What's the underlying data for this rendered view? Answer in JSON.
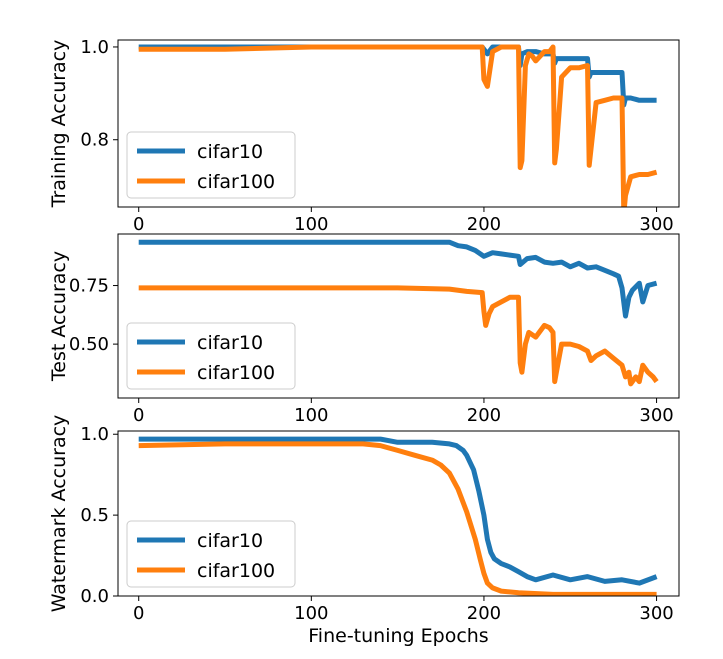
{
  "chart_data": [
    {
      "type": "line",
      "ylabel": "Training Accuracy",
      "xlabel": "",
      "xlim": [
        -12,
        313
      ],
      "ylim": [
        0.655,
        1.015
      ],
      "xticks": [
        0,
        100,
        200,
        300
      ],
      "xtick_labels": [
        "0",
        "100",
        "200",
        "300"
      ],
      "yticks": [
        0.8,
        1.0
      ],
      "ytick_labels": [
        "0.8",
        "1.0"
      ],
      "legend_position": "lower-left",
      "series": [
        {
          "name": "cifar10",
          "color": "#1f77b4",
          "x": [
            0,
            20,
            50,
            100,
            150,
            180,
            199,
            202,
            205,
            210,
            220,
            221,
            222,
            225,
            230,
            235,
            240,
            241,
            242,
            245,
            250,
            255,
            260,
            261,
            262,
            265,
            270,
            275,
            280,
            281,
            282,
            285,
            290,
            295,
            300
          ],
          "y": [
            1.0,
            1.0,
            1.0,
            1.0,
            1.0,
            1.0,
            1.0,
            0.985,
            1.0,
            1.0,
            1.0,
            0.96,
            0.985,
            0.99,
            0.99,
            0.985,
            0.985,
            0.965,
            0.975,
            0.975,
            0.975,
            0.975,
            0.975,
            0.935,
            0.945,
            0.945,
            0.945,
            0.945,
            0.945,
            0.875,
            0.89,
            0.89,
            0.885,
            0.885,
            0.885
          ]
        },
        {
          "name": "cifar100",
          "color": "#ff7f0e",
          "x": [
            0,
            20,
            50,
            100,
            150,
            180,
            199,
            200,
            202,
            205,
            210,
            220,
            221,
            222,
            224,
            226,
            228,
            230,
            235,
            238,
            240,
            241,
            242,
            245,
            250,
            255,
            260,
            261,
            262,
            265,
            270,
            275,
            280,
            281,
            282,
            285,
            290,
            295,
            300
          ],
          "y": [
            0.995,
            0.995,
            0.995,
            1.0,
            1.0,
            1.0,
            1.0,
            0.93,
            0.915,
            0.99,
            1.0,
            1.0,
            0.74,
            0.755,
            0.96,
            0.985,
            0.98,
            0.97,
            0.99,
            0.99,
            1.0,
            0.75,
            0.78,
            0.935,
            0.955,
            0.955,
            0.96,
            0.745,
            0.78,
            0.88,
            0.885,
            0.89,
            0.89,
            0.64,
            0.68,
            0.72,
            0.725,
            0.725,
            0.73
          ]
        }
      ]
    },
    {
      "type": "line",
      "ylabel": "Test Accuracy",
      "xlabel": "",
      "xlim": [
        -12,
        313
      ],
      "ylim": [
        0.27,
        0.97
      ],
      "xticks": [
        0,
        100,
        200,
        300
      ],
      "xtick_labels": [
        "0",
        "100",
        "200",
        "300"
      ],
      "yticks": [
        0.5,
        0.75
      ],
      "ytick_labels": [
        "0.50",
        "0.75"
      ],
      "legend_position": "lower-left",
      "series": [
        {
          "name": "cifar10",
          "color": "#1f77b4",
          "x": [
            0,
            50,
            100,
            150,
            180,
            185,
            190,
            195,
            200,
            205,
            210,
            215,
            220,
            221,
            225,
            230,
            235,
            240,
            245,
            250,
            255,
            260,
            265,
            270,
            275,
            278,
            280,
            282,
            284,
            286,
            290,
            292,
            295,
            300
          ],
          "y": [
            0.935,
            0.935,
            0.935,
            0.935,
            0.935,
            0.92,
            0.915,
            0.9,
            0.875,
            0.89,
            0.885,
            0.88,
            0.875,
            0.84,
            0.865,
            0.87,
            0.85,
            0.845,
            0.85,
            0.83,
            0.845,
            0.825,
            0.83,
            0.815,
            0.8,
            0.79,
            0.74,
            0.62,
            0.7,
            0.73,
            0.76,
            0.68,
            0.75,
            0.76
          ]
        },
        {
          "name": "cifar100",
          "color": "#ff7f0e",
          "x": [
            0,
            50,
            100,
            150,
            180,
            190,
            199,
            200,
            201,
            203,
            205,
            210,
            215,
            220,
            221,
            222,
            224,
            226,
            230,
            235,
            238,
            240,
            241,
            242,
            245,
            250,
            255,
            260,
            262,
            265,
            270,
            275,
            280,
            282,
            284,
            285,
            288,
            290,
            292,
            295,
            298,
            300
          ],
          "y": [
            0.74,
            0.74,
            0.74,
            0.74,
            0.735,
            0.725,
            0.72,
            0.64,
            0.58,
            0.63,
            0.66,
            0.68,
            0.7,
            0.7,
            0.42,
            0.38,
            0.5,
            0.55,
            0.53,
            0.58,
            0.57,
            0.55,
            0.34,
            0.38,
            0.5,
            0.5,
            0.49,
            0.47,
            0.43,
            0.45,
            0.47,
            0.44,
            0.41,
            0.36,
            0.38,
            0.33,
            0.36,
            0.34,
            0.41,
            0.38,
            0.36,
            0.34
          ]
        }
      ]
    },
    {
      "type": "line",
      "ylabel": "Watermark Accuracy",
      "xlabel": "Fine-tuning Epochs",
      "xlim": [
        -12,
        313
      ],
      "ylim": [
        0.0,
        1.02
      ],
      "xticks": [
        0,
        100,
        200,
        300
      ],
      "xtick_labels": [
        "0",
        "100",
        "200",
        "300"
      ],
      "yticks": [
        0.0,
        0.5,
        1.0
      ],
      "ytick_labels": [
        "0.0",
        "0.5",
        "1.0"
      ],
      "legend_position": "lower-left",
      "series": [
        {
          "name": "cifar10",
          "color": "#1f77b4",
          "x": [
            0,
            50,
            100,
            140,
            150,
            160,
            170,
            180,
            184,
            188,
            190,
            194,
            197,
            200,
            202,
            204,
            206,
            210,
            215,
            220,
            225,
            230,
            240,
            250,
            260,
            270,
            280,
            290,
            300
          ],
          "y": [
            0.97,
            0.97,
            0.97,
            0.97,
            0.95,
            0.95,
            0.95,
            0.94,
            0.93,
            0.9,
            0.87,
            0.78,
            0.65,
            0.5,
            0.35,
            0.27,
            0.23,
            0.2,
            0.18,
            0.15,
            0.12,
            0.1,
            0.13,
            0.1,
            0.12,
            0.09,
            0.1,
            0.08,
            0.12
          ]
        },
        {
          "name": "cifar100",
          "color": "#ff7f0e",
          "x": [
            0,
            50,
            100,
            130,
            140,
            150,
            160,
            170,
            175,
            180,
            185,
            190,
            195,
            198,
            200,
            202,
            205,
            210,
            220,
            240,
            260,
            280,
            300
          ],
          "y": [
            0.93,
            0.94,
            0.94,
            0.94,
            0.93,
            0.9,
            0.87,
            0.84,
            0.81,
            0.76,
            0.66,
            0.52,
            0.35,
            0.22,
            0.14,
            0.08,
            0.05,
            0.03,
            0.02,
            0.01,
            0.01,
            0.01,
            0.01
          ]
        }
      ]
    }
  ]
}
